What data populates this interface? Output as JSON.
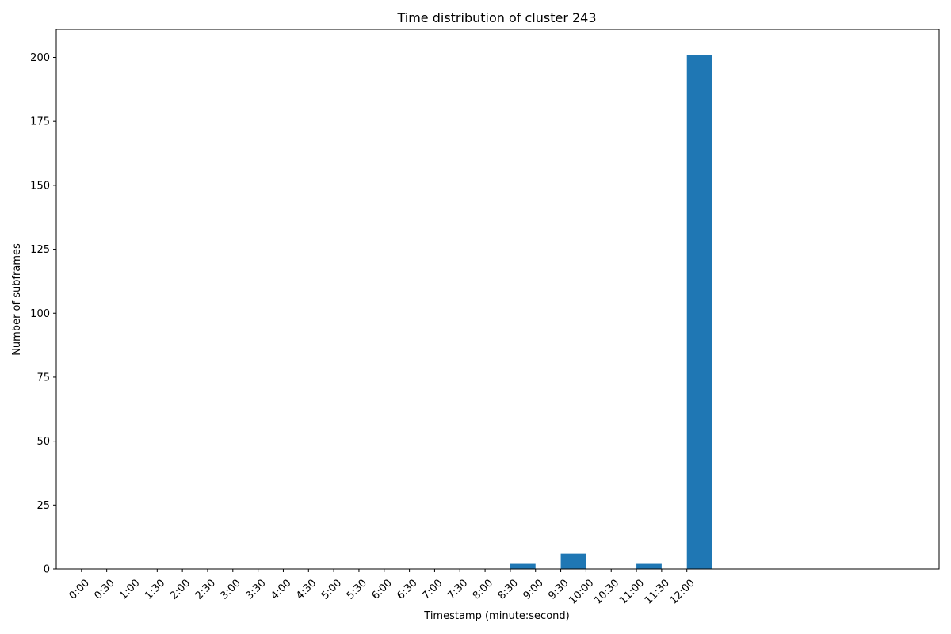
{
  "chart_data": {
    "type": "bar",
    "title": "Time distribution of cluster 243",
    "xlabel": "Timestamp (minute:second)",
    "ylabel": "Number of subframes",
    "categories": [
      "0:00",
      "0:30",
      "1:00",
      "1:30",
      "2:00",
      "2:30",
      "3:00",
      "3:30",
      "4:00",
      "4:30",
      "5:00",
      "5:30",
      "6:00",
      "6:30",
      "7:00",
      "7:30",
      "8:00",
      "8:30",
      "9:00",
      "9:30",
      "10:00",
      "10:30",
      "11:00",
      "11:30",
      "12:00"
    ],
    "bars": [
      {
        "start": "8:30",
        "end": "9:00",
        "value": 2
      },
      {
        "start": "9:30",
        "end": "10:00",
        "value": 6
      },
      {
        "start": "11:00",
        "end": "11:30",
        "value": 2
      },
      {
        "start": "12:00",
        "end": "12:30",
        "value": 201
      }
    ],
    "yticks": [
      0,
      25,
      50,
      75,
      100,
      125,
      150,
      175,
      200
    ],
    "ylim": [
      0,
      211
    ],
    "xlim": [
      "-0:30",
      "17:00"
    ],
    "grid": false,
    "bar_color": "#1f77b4"
  }
}
